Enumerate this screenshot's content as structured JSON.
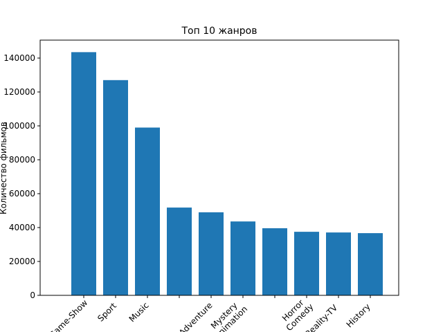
{
  "chart_data": {
    "type": "bar",
    "title": "Топ 10 жанров",
    "ylabel": "Количество фильмов",
    "categories": [
      "Game-Show",
      "Sport",
      "Music",
      null,
      "Adventure",
      "Mystery\nAnimation",
      null,
      "Horror\nComedy",
      "Reality-TV",
      "History"
    ],
    "values": [
      143500,
      127000,
      99000,
      51800,
      49000,
      43600,
      39600,
      37500,
      37100,
      36700
    ],
    "color": "#1f77b4",
    "ylim": [
      0,
      150600
    ],
    "yticks": [
      0,
      20000,
      40000,
      60000,
      80000,
      100000,
      120000,
      140000
    ],
    "grid": false
  }
}
